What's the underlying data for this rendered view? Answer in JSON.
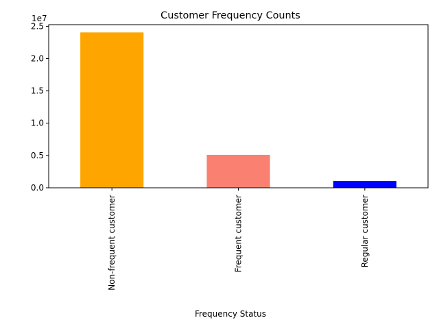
{
  "chart_data": {
    "type": "bar",
    "title": "Customer Frequency Counts",
    "xlabel": "Frequency Status",
    "ylabel": "",
    "categories": [
      "Non-frequent customer",
      "Frequent customer",
      "Regular customer"
    ],
    "values": [
      24050000,
      5100000,
      1050000
    ],
    "colors": [
      "#ffa500",
      "#fa8072",
      "#0000ff"
    ],
    "ylim": [
      0,
      25250000
    ],
    "yticks": [
      0,
      5000000,
      10000000,
      15000000,
      20000000,
      25000000
    ],
    "ytick_labels": [
      "0.0",
      "0.5",
      "1.0",
      "1.5",
      "2.0",
      "2.5"
    ],
    "y_offset_label": "1e7",
    "grid": false,
    "legend": "none"
  }
}
